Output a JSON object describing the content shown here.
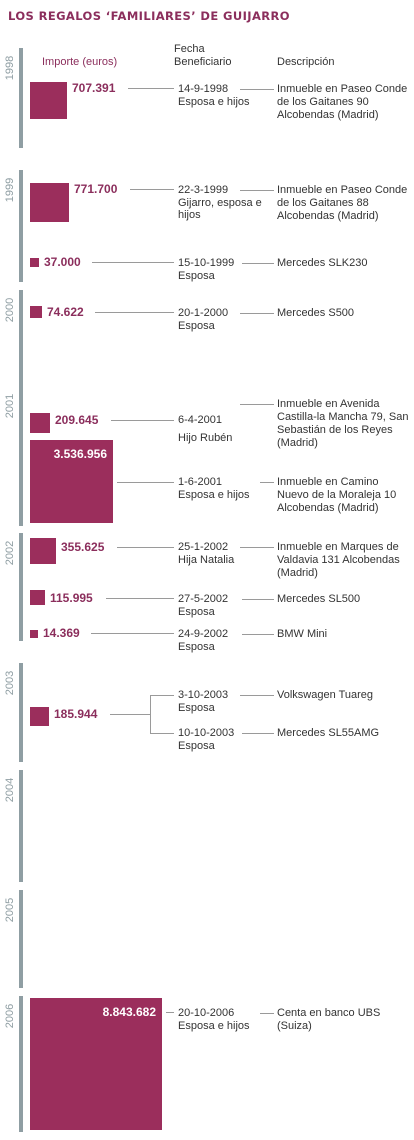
{
  "title": "LOS REGALOS ‘FAMILIARES’ DE GUIJARRO",
  "headers": {
    "importe": "Importe (euros)",
    "fecha": "Fecha",
    "beneficiario": "Beneficiario",
    "descripcion": "Descripción"
  },
  "colors": {
    "accent": "#9b2e5c",
    "timeline": "#8f9ea3",
    "connector": "#9a9a9a"
  },
  "chart_data": {
    "type": "table",
    "title": "LOS REGALOS ‘FAMILIARES’ DE GUIJARRO",
    "columns": [
      "Importe (euros)",
      "Fecha",
      "Beneficiario",
      "Descripción"
    ],
    "years": [
      "1998",
      "1999",
      "2000",
      "2001",
      "2002",
      "2003",
      "2004",
      "2005",
      "2006"
    ],
    "rows": [
      {
        "year": "1998",
        "importe_label": "707.391",
        "value": 707391,
        "fecha": "14-9-1998",
        "beneficiario": "Esposa e hijos",
        "descripcion": "Inmueble en Paseo Conde de los Gaitanes 90 Alcobendas (Madrid)"
      },
      {
        "year": "1999",
        "importe_label": "771.700",
        "value": 771700,
        "fecha": "22-3-1999",
        "beneficiario": "Gijarro, esposa e hijos",
        "descripcion": "Inmueble en Paseo Conde de los Gaitanes 88 Alcobendas (Madrid)"
      },
      {
        "year": "1999",
        "importe_label": "37.000",
        "value": 37000,
        "fecha": "15-10-1999",
        "beneficiario": "Esposa",
        "descripcion": "Mercedes SLK230"
      },
      {
        "year": "2000",
        "importe_label": "74.622",
        "value": 74622,
        "fecha": "20-1-2000",
        "beneficiario": "Esposa",
        "descripcion": "Mercedes S500"
      },
      {
        "year": "2001",
        "importe_label": "209.645",
        "value": 209645,
        "fecha": "6-4-2001",
        "beneficiario": "Hijo Rubén",
        "descripcion": "Inmueble en  Avenida Castilla-la Mancha 79, San Sebastián de los Reyes (Madrid)"
      },
      {
        "year": "2001",
        "importe_label": "3.536.956",
        "value": 3536956,
        "fecha": "1-6-2001",
        "beneficiario": "Esposa e hijos",
        "descripcion": "Inmueble en Camino Nuevo de la Moraleja 10 Alcobendas (Madrid)"
      },
      {
        "year": "2002",
        "importe_label": "355.625",
        "value": 355625,
        "fecha": "25-1-2002",
        "beneficiario": "Hija Natalia",
        "descripcion": "Inmueble en Marques de Valdavia 131 Alcobendas (Madrid)"
      },
      {
        "year": "2002",
        "importe_label": "115.995",
        "value": 115995,
        "fecha": "27-5-2002",
        "beneficiario": "Esposa",
        "descripcion": "Mercedes SL500"
      },
      {
        "year": "2002",
        "importe_label": "14.369",
        "value": 14369,
        "fecha": "24-9-2002",
        "beneficiario": "Esposa",
        "descripcion": "BMW Mini"
      },
      {
        "year": "2003",
        "importe_label": "185.944",
        "value": 185944,
        "fecha": "3-10-2003",
        "beneficiario": "Esposa",
        "descripcion": "Volkswagen Tuareg"
      },
      {
        "year": "2003",
        "importe_label": "",
        "value": null,
        "fecha": "10-10-2003",
        "beneficiario": "Esposa",
        "descripcion": "Mercedes SL55AMG"
      },
      {
        "year": "2006",
        "importe_label": "8.843.682",
        "value": 8843682,
        "fecha": "20-10-2006",
        "beneficiario": "Esposa e hijos",
        "descripcion": "Centa en banco UBS (Suiza)"
      }
    ]
  }
}
